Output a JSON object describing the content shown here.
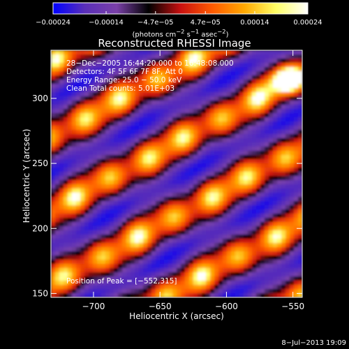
{
  "chart_data": {
    "type": "heatmap",
    "title": "Reconstructed RHESSI Image",
    "xlabel": "Heliocentric X (arcsec)",
    "ylabel": "Heliocentric Y (arcsec)",
    "xlim": [
      -732,
      -543
    ],
    "ylim": [
      147,
      337
    ],
    "x_ticks": [
      -700,
      -650,
      -600,
      -550
    ],
    "x_tick_labels": [
      "−700",
      "−650",
      "−600",
      "−550"
    ],
    "y_ticks": [
      150,
      200,
      250,
      300
    ],
    "y_tick_labels": [
      "150",
      "200",
      "250",
      "300"
    ],
    "colorbar": {
      "range": [
        -0.00024,
        0.00024
      ],
      "ticks": [
        -0.00024,
        -0.00014,
        -4.7e-05,
        4.7e-05,
        0.00014,
        0.00024
      ],
      "tick_labels": [
        "−0.00024",
        "−0.00014",
        "−4.7e−05",
        "4.7e−05",
        "0.00014",
        "0.00024"
      ],
      "colors": [
        "#0000ff",
        "#5a2fb8",
        "#7a40a8",
        "#000000",
        "#c81010",
        "#ff5a00",
        "#ffa800",
        "#ffff66",
        "#ffffff"
      ]
    },
    "unit_label": {
      "base": "(photons cm",
      "exp1": "−2",
      "mid1": " s",
      "exp2": "−1",
      "mid2": " asec",
      "exp3": "−2",
      "end": ")"
    },
    "info_lines": [
      "28−Dec−2005 16:44:20.000 to 16:48:08.000",
      "Detectors: 4F 5F 6F 7F 8F, Att 0",
      "Energy Range: 25.0 − 50.0 keV",
      "Clean     Total counts: 5.01E+03"
    ],
    "peak_text": "Position of Peak = [−552,315]",
    "peak_position": [
      -552,
      315
    ]
  },
  "footer": {
    "date": "8−Jul−2013 19:09"
  }
}
